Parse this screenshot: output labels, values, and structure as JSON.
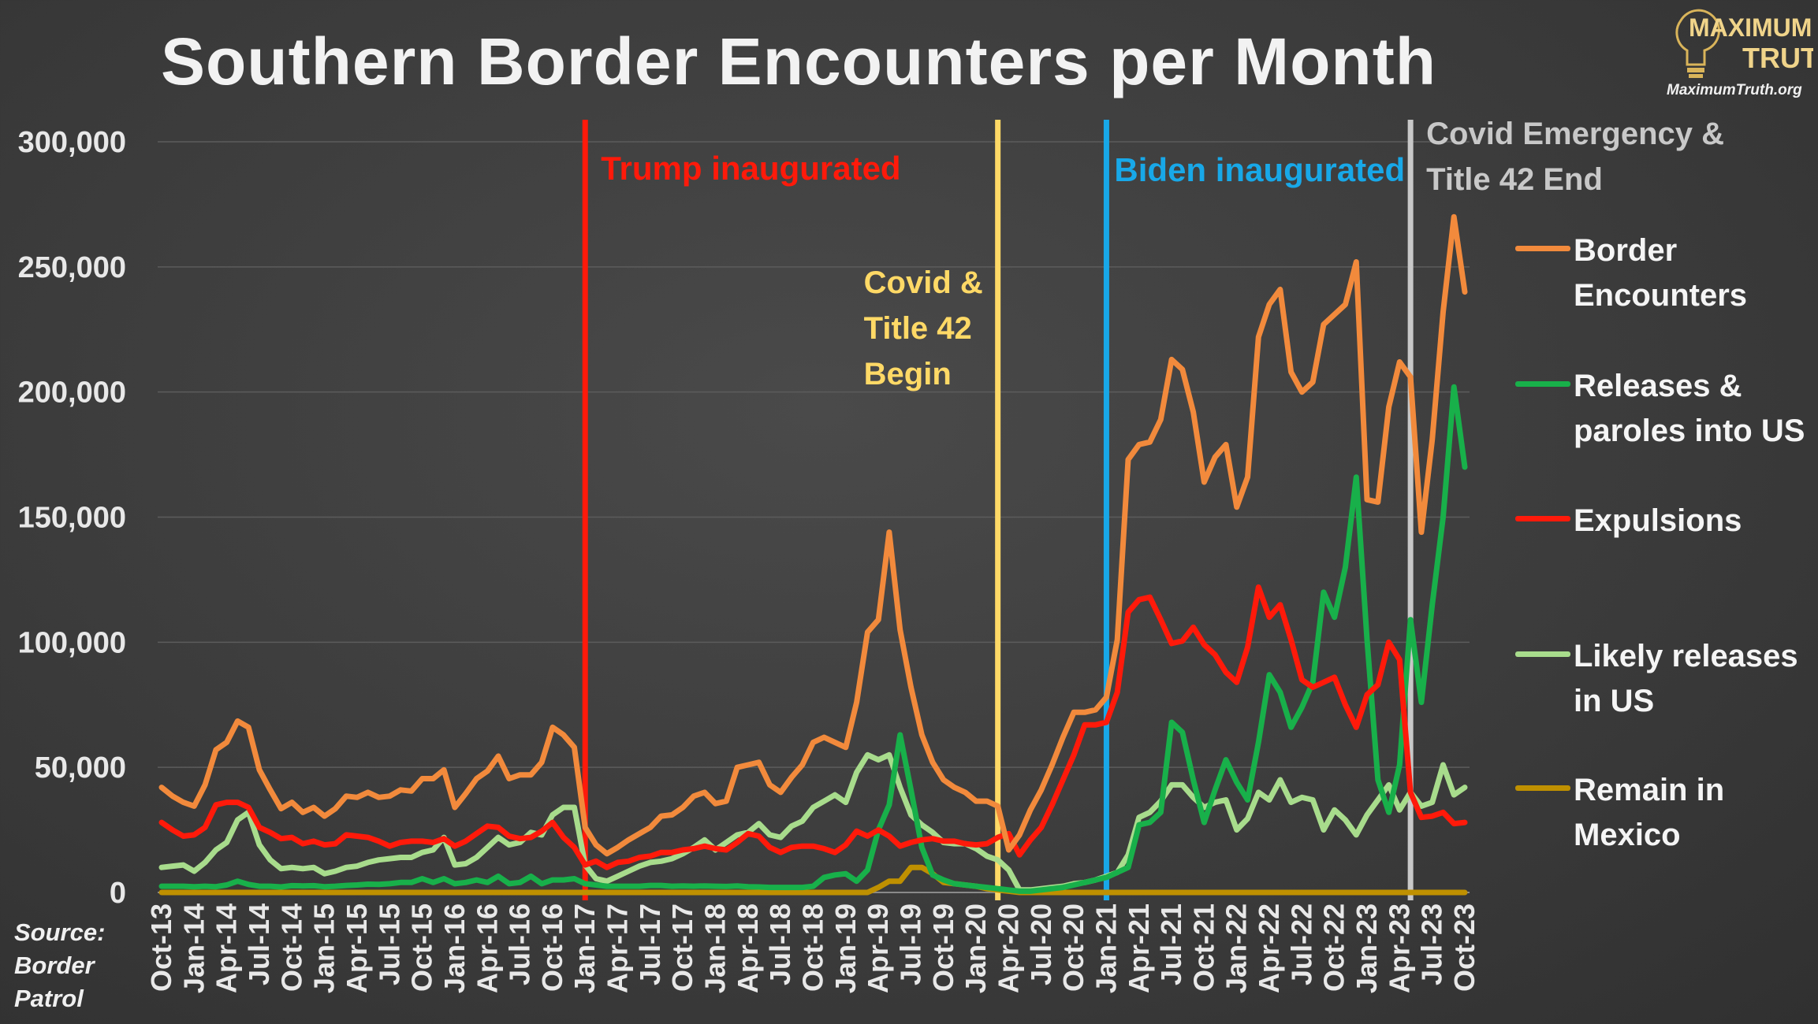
{
  "title": "Southern Border Encounters per Month",
  "logo": {
    "line1": "MAXIMUM",
    "line2": "TRUTH",
    "url": "MaximumTruth.org"
  },
  "source": "Source: Border Patrol",
  "colors": {
    "encounters": "#f28a3c",
    "releases": "#18b04a",
    "expulsions": "#ff1a0a",
    "likely": "#a8dc8c",
    "remain": "#bf9000",
    "trump": "#ff1a0a",
    "covid": "#ffd966",
    "biden": "#18a8e8",
    "end": "#c8c8c8",
    "axis_text": "#e8e8e8",
    "grid": "#5c5c5c"
  },
  "legend": [
    {
      "key": "encounters",
      "label": "Border Encounters"
    },
    {
      "key": "releases",
      "label": "Releases & paroles into US"
    },
    {
      "key": "expulsions",
      "label": "Expulsions"
    },
    {
      "key": "likely",
      "label": "Likely releases in US"
    },
    {
      "key": "remain",
      "label": "Remain in Mexico"
    }
  ],
  "chart_data": {
    "type": "line",
    "x_start": "Oct-13",
    "x_end": "Oct-23",
    "x_tick_labels": [
      "Oct-13",
      "Jan-14",
      "Apr-14",
      "Jul-14",
      "Oct-14",
      "Jan-15",
      "Apr-15",
      "Jul-15",
      "Oct-15",
      "Jan-16",
      "Apr-16",
      "Jul-16",
      "Oct-16",
      "Jan-17",
      "Apr-17",
      "Jul-17",
      "Oct-17",
      "Jan-18",
      "Apr-18",
      "Jul-18",
      "Oct-18",
      "Jan-19",
      "Apr-19",
      "Jul-19",
      "Oct-19",
      "Jan-20",
      "Apr-20",
      "Jul-20",
      "Oct-20",
      "Jan-21",
      "Apr-21",
      "Jul-21",
      "Oct-21",
      "Jan-22",
      "Apr-22",
      "Jul-22",
      "Oct-22",
      "Jan-23",
      "Apr-23",
      "Jul-23",
      "Oct-23"
    ],
    "ylim": [
      0,
      300000
    ],
    "y_ticks": [
      0,
      50000,
      100000,
      150000,
      200000,
      250000,
      300000
    ],
    "y_tick_labels": [
      "0",
      "50,000",
      "100,000",
      "150,000",
      "200,000",
      "250,000",
      "300,000"
    ],
    "grid": true,
    "legend_position": "right",
    "series": [
      {
        "key": "encounters",
        "name": "Border Encounters",
        "values": [
          42000,
          38500,
          36000,
          34500,
          43000,
          57000,
          60000,
          68500,
          66000,
          49000,
          41000,
          33500,
          36000,
          32000,
          34000,
          30500,
          33500,
          38500,
          38000,
          40000,
          38000,
          38500,
          41000,
          40500,
          45500,
          45500,
          49000,
          34000,
          39500,
          45500,
          48500,
          54500,
          45500,
          47000,
          47000,
          52000,
          66000,
          63000,
          58000,
          26000,
          19000,
          15500,
          18000,
          21000,
          23500,
          26000,
          30500,
          31000,
          34000,
          38500,
          40000,
          35500,
          36500,
          50000,
          51000,
          52000,
          43000,
          40000,
          46000,
          51000,
          60000,
          62000,
          60000,
          58000,
          76000,
          104000,
          109000,
          144000,
          105000,
          82000,
          63000,
          52000,
          45000,
          42000,
          40000,
          36500,
          36500,
          34500,
          17000,
          23000,
          33000,
          41000,
          51000,
          62000,
          72000,
          72000,
          73000,
          78000,
          101000,
          173000,
          179000,
          180000,
          189000,
          213000,
          209000,
          192000,
          164000,
          174000,
          179000,
          154000,
          166000,
          222000,
          235000,
          241000,
          208000,
          200000,
          204000,
          227000,
          231000,
          235000,
          252000,
          157000,
          156000,
          194000,
          212000,
          206000,
          144000,
          181000,
          232000,
          270000,
          240000
        ]
      },
      {
        "key": "releases",
        "name": "Releases & paroles into US",
        "values": [
          2500,
          2500,
          2500,
          2300,
          2500,
          2300,
          3000,
          4500,
          3200,
          2500,
          2500,
          2200,
          2700,
          2600,
          2700,
          2300,
          2500,
          2800,
          3000,
          3300,
          3200,
          3500,
          4000,
          4000,
          5500,
          4000,
          5500,
          3500,
          4000,
          5000,
          4000,
          6500,
          3500,
          4000,
          6500,
          3500,
          5000,
          5000,
          5500,
          3500,
          3000,
          2500,
          2500,
          2500,
          2500,
          2800,
          2800,
          2500,
          2600,
          2500,
          2600,
          2500,
          2400,
          2600,
          2300,
          2200,
          2000,
          2000,
          2000,
          2000,
          2500,
          6000,
          7000,
          7500,
          4500,
          9000,
          25000,
          35000,
          63000,
          41000,
          18000,
          7000,
          5000,
          3500,
          3000,
          2500,
          2000,
          1500,
          1000,
          500,
          500,
          1000,
          1500,
          2000,
          3000,
          4000,
          5000,
          6000,
          8000,
          10000,
          27000,
          28000,
          32000,
          68000,
          64000,
          45000,
          28000,
          41000,
          53000,
          44000,
          37000,
          60000,
          87000,
          80000,
          66000,
          74000,
          84000,
          120000,
          110000,
          130000,
          166000,
          101000,
          45000,
          32000,
          51000,
          109000,
          76000,
          115000,
          150000,
          202000,
          170000
        ]
      },
      {
        "key": "expulsions",
        "name": "Expulsions",
        "values": [
          28000,
          25000,
          22500,
          23000,
          26000,
          35000,
          36000,
          36000,
          34000,
          26000,
          24000,
          21500,
          22000,
          19500,
          20500,
          19000,
          19500,
          23000,
          22500,
          22000,
          20500,
          18500,
          20000,
          20500,
          20500,
          20000,
          21500,
          18500,
          20500,
          23500,
          26500,
          26000,
          22500,
          21500,
          22000,
          24500,
          28000,
          22000,
          18000,
          11000,
          12500,
          10000,
          12000,
          12500,
          14000,
          14500,
          16000,
          16000,
          17000,
          17500,
          18500,
          17500,
          17000,
          20000,
          23500,
          22500,
          18000,
          16000,
          18000,
          18500,
          18500,
          17500,
          16000,
          19000,
          24500,
          22500,
          25000,
          22500,
          18500,
          20000,
          21000,
          21500,
          20500,
          20500,
          19500,
          19000,
          19500,
          22000,
          23500,
          15000,
          21000,
          26000,
          35000,
          45000,
          55000,
          67000,
          67000,
          68000,
          80000,
          112000,
          117000,
          118000,
          109000,
          99500,
          100500,
          106000,
          99000,
          95000,
          88000,
          84000,
          98000,
          122000,
          110000,
          115000,
          101000,
          85000,
          82000,
          84000,
          86000,
          75000,
          66000,
          79000,
          83000,
          100000,
          93000,
          40000,
          30000,
          30500,
          32000,
          27500,
          28000
        ]
      },
      {
        "key": "likely",
        "name": "Likely releases in US",
        "values": [
          10000,
          10500,
          11000,
          8500,
          12000,
          17000,
          20000,
          29000,
          32000,
          19000,
          13000,
          9500,
          10000,
          9500,
          10000,
          7500,
          8500,
          10000,
          10500,
          12000,
          13000,
          13500,
          14000,
          14000,
          16000,
          17000,
          22000,
          11000,
          11500,
          14000,
          18000,
          22000,
          19000,
          20000,
          24000,
          23000,
          31000,
          34000,
          34000,
          11000,
          5500,
          4500,
          6500,
          8500,
          10500,
          12000,
          12500,
          13500,
          15500,
          18000,
          21000,
          17000,
          20000,
          23000,
          24000,
          27500,
          23000,
          22000,
          26500,
          28500,
          34000,
          36500,
          39000,
          36000,
          48000,
          55000,
          53000,
          55000,
          42000,
          31000,
          27000,
          24000,
          20000,
          19500,
          19500,
          17500,
          14500,
          13000,
          9000,
          1000,
          1000,
          1500,
          2000,
          2500,
          3500,
          4000,
          5000,
          6500,
          8000,
          15000,
          30000,
          32000,
          36500,
          43000,
          43000,
          38000,
          34000,
          36000,
          37000,
          25000,
          29500,
          40000,
          37000,
          45000,
          36000,
          38000,
          37000,
          25000,
          33000,
          29000,
          23000,
          31000,
          37000,
          43000,
          33000,
          40000,
          34500,
          36000,
          51000,
          39000,
          42000
        ]
      },
      {
        "key": "remain",
        "name": "Remain in Mexico",
        "values": [
          0,
          0,
          0,
          0,
          0,
          0,
          0,
          0,
          0,
          0,
          0,
          0,
          0,
          0,
          0,
          0,
          0,
          0,
          0,
          0,
          0,
          0,
          0,
          0,
          0,
          0,
          0,
          0,
          0,
          0,
          0,
          0,
          0,
          0,
          0,
          0,
          0,
          0,
          0,
          0,
          0,
          0,
          0,
          0,
          0,
          0,
          0,
          0,
          0,
          0,
          0,
          0,
          0,
          0,
          0,
          0,
          0,
          0,
          0,
          0,
          0,
          0,
          0,
          0,
          0,
          0,
          2000,
          4500,
          4500,
          10000,
          10000,
          7500,
          4000,
          3500,
          3000,
          2500,
          1500,
          1000,
          500,
          0,
          0,
          0,
          0,
          0,
          0,
          0,
          0,
          0,
          0,
          0,
          0,
          0,
          0,
          0,
          0,
          0,
          0,
          0,
          0,
          0,
          0,
          0,
          0,
          0,
          0,
          0,
          0,
          0,
          0,
          0,
          0,
          0,
          0,
          0,
          0,
          0,
          0,
          0,
          0,
          0,
          0
        ]
      }
    ],
    "annotations": [
      {
        "date": "Jan-17",
        "key": "trump",
        "text": "Trump inaugurated"
      },
      {
        "date": "Mar-20",
        "key": "covid",
        "text": "Covid & Title 42 Begin"
      },
      {
        "date": "Jan-21",
        "key": "biden",
        "text": "Biden inaugurated"
      },
      {
        "date": "May-23",
        "key": "end",
        "text": "Covid Emergency & Title 42 End"
      }
    ]
  }
}
